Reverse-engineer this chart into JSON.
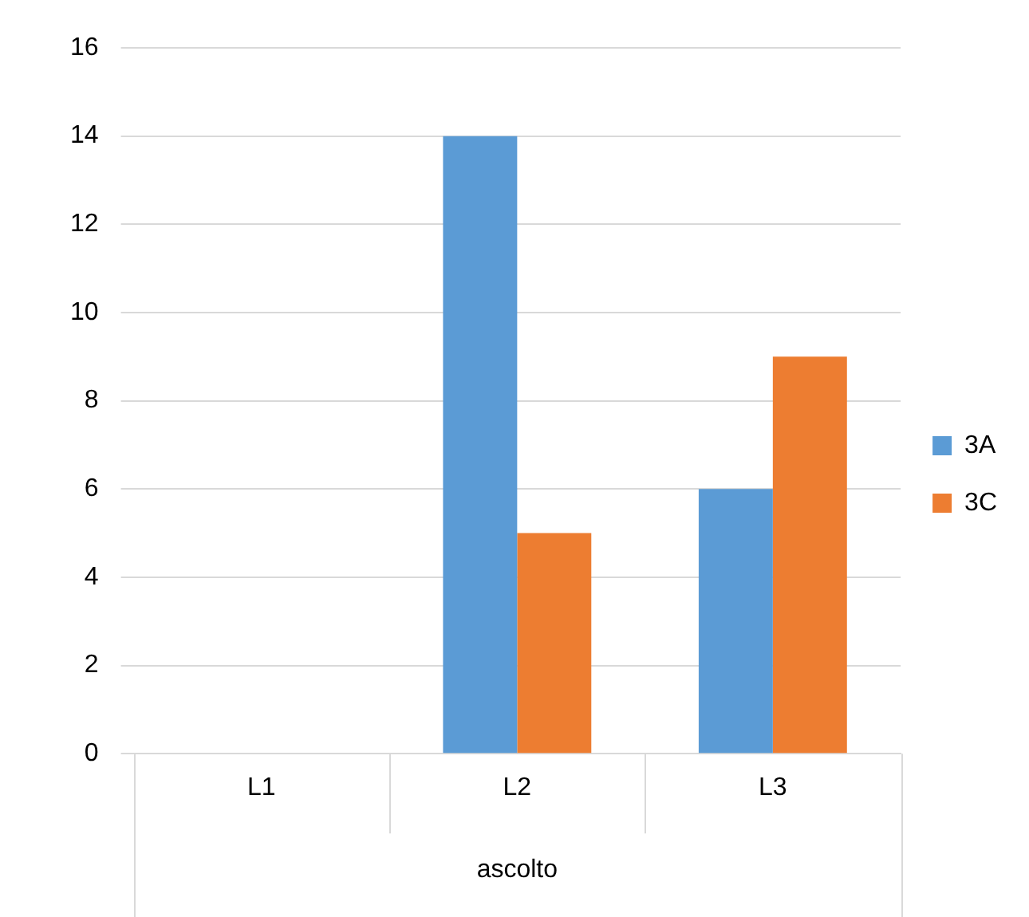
{
  "chart_data": {
    "type": "bar",
    "categories": [
      "L1",
      "L2",
      "L3"
    ],
    "xlabel": "ascolto",
    "series": [
      {
        "name": "3A",
        "color": "#5b9bd5",
        "values": [
          0,
          14,
          6
        ]
      },
      {
        "name": "3C",
        "color": "#ed7d31",
        "values": [
          0,
          5,
          9
        ]
      }
    ],
    "ylim": [
      0,
      16
    ],
    "yticks": [
      0,
      2,
      4,
      6,
      8,
      10,
      12,
      14,
      16
    ],
    "grid": "y",
    "legend": "right"
  }
}
